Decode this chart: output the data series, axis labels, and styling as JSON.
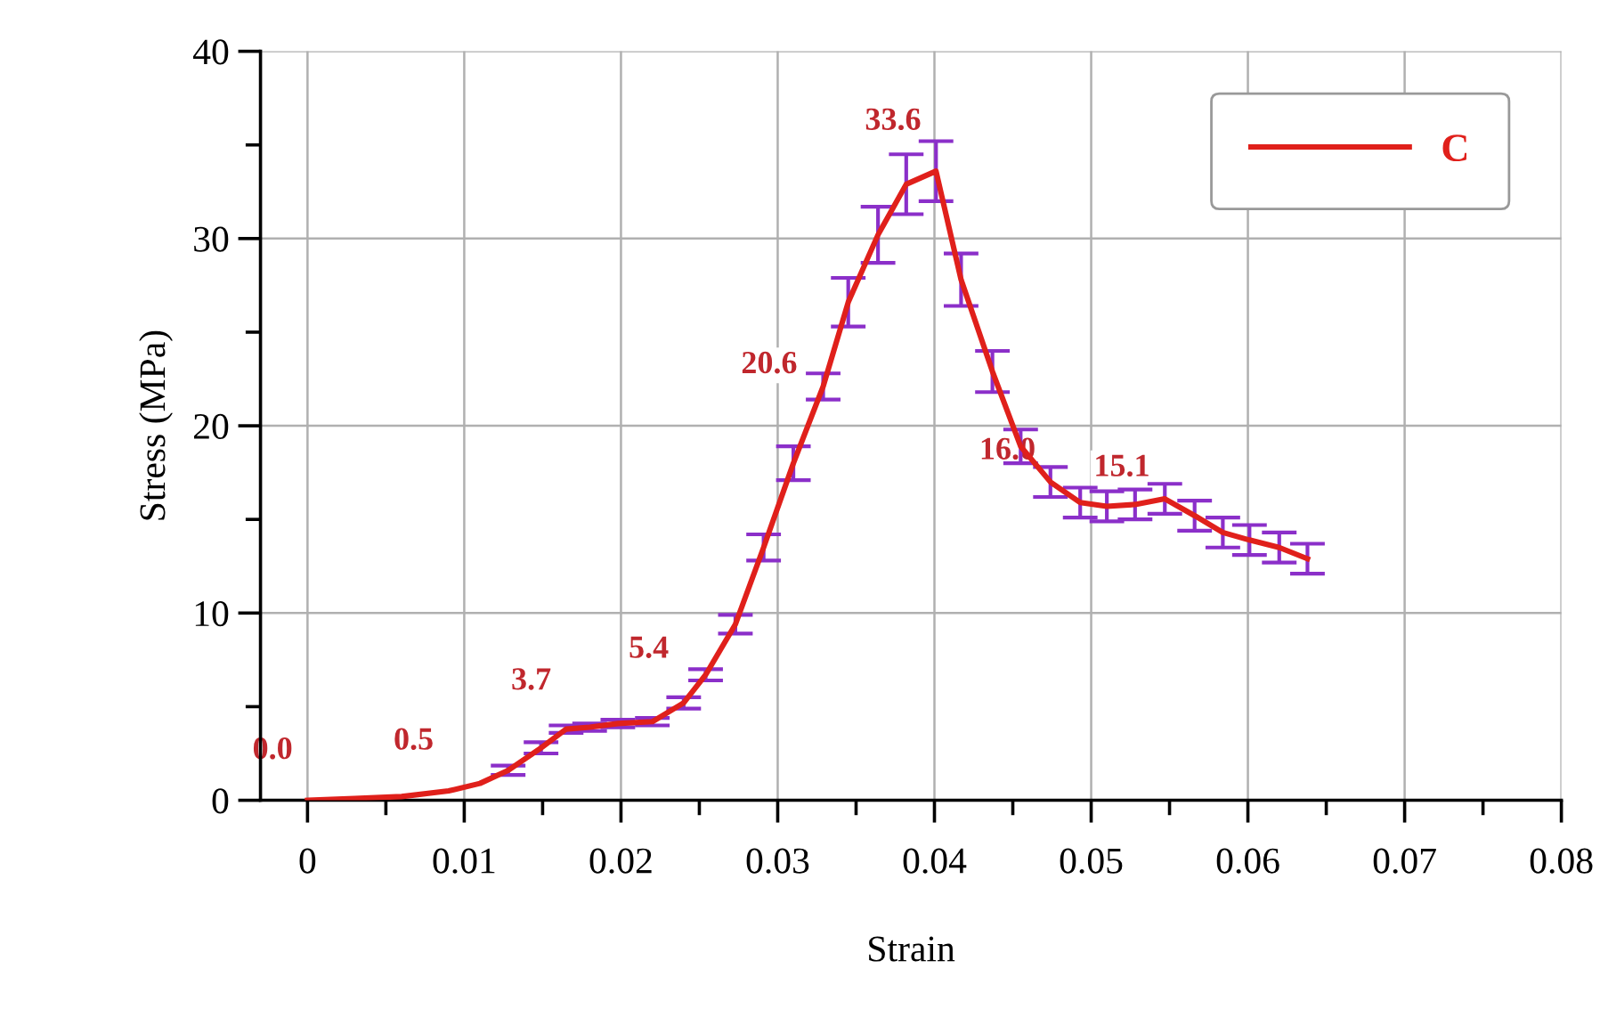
{
  "chart_data": {
    "type": "line",
    "xlabel": "Strain",
    "ylabel": "Stress (MPa)",
    "x": [
      0,
      0.003,
      0.006,
      0.009,
      0.011,
      0.0128,
      0.0149,
      0.0165,
      0.018,
      0.0198,
      0.022,
      0.024,
      0.0254,
      0.0273,
      0.0291,
      0.031,
      0.0329,
      0.0345,
      0.0364,
      0.0382,
      0.0401,
      0.0417,
      0.0437,
      0.0455,
      0.0474,
      0.0493,
      0.051,
      0.0528,
      0.0547,
      0.0566,
      0.0584,
      0.0601,
      0.062,
      0.0638
    ],
    "series": [
      {
        "name": "C",
        "color": "#e0201b",
        "values": [
          0,
          0.1,
          0.2,
          0.5,
          0.9,
          1.6,
          2.8,
          3.8,
          3.9,
          4.1,
          4.2,
          5.2,
          6.7,
          9.4,
          13.5,
          18.0,
          22.1,
          26.6,
          30.2,
          32.9,
          33.6,
          27.8,
          22.9,
          18.9,
          17.0,
          15.9,
          15.7,
          15.8,
          16.1,
          15.2,
          14.3,
          13.9,
          13.5,
          12.9
        ],
        "errors": [
          null,
          null,
          null,
          null,
          null,
          0.25,
          0.3,
          0.2,
          0.2,
          0.2,
          0.2,
          0.3,
          0.3,
          0.5,
          0.7,
          0.9,
          0.7,
          1.3,
          1.5,
          1.6,
          1.6,
          1.4,
          1.1,
          0.9,
          0.8,
          0.8,
          0.8,
          0.8,
          0.8,
          0.8,
          0.8,
          0.8,
          0.8,
          0.8
        ]
      }
    ],
    "annotations": [
      {
        "text": "0.0",
        "x": 0,
        "y": 0
      },
      {
        "text": "0.5",
        "x": 0.009,
        "y": 0.5
      },
      {
        "text": "3.7",
        "x": 0.0165,
        "y": 3.7
      },
      {
        "text": "5.4",
        "x": 0.024,
        "y": 5.4
      },
      {
        "text": "20.6",
        "x": 0.0322,
        "y": 20.6
      },
      {
        "text": "33.6",
        "x": 0.0401,
        "y": 33.6
      },
      {
        "text": "16.0",
        "x": 0.0474,
        "y": 16.0
      },
      {
        "text": "15.1",
        "x": 0.0547,
        "y": 15.1
      }
    ],
    "xlim": [
      -0.003,
      0.08
    ],
    "ylim": [
      0,
      40
    ],
    "xticks": [
      0,
      {
        "value": 0.005,
        "label": null
      },
      0.01,
      {
        "value": 0.015,
        "label": null
      },
      0.02,
      {
        "value": 0.025,
        "label": null
      },
      0.03,
      {
        "value": 0.035,
        "label": null
      },
      0.04,
      {
        "value": 0.045,
        "label": null
      },
      0.05,
      {
        "value": 0.055,
        "label": null
      },
      0.06,
      {
        "value": 0.065,
        "label": null
      },
      0.07,
      {
        "value": 0.075,
        "label": null
      },
      0.08
    ],
    "yticks": [
      0,
      {
        "value": 5,
        "label": null
      },
      10,
      {
        "value": 15,
        "label": null
      },
      20,
      {
        "value": 25,
        "label": null
      },
      30,
      {
        "value": 35,
        "label": null
      },
      40
    ],
    "grid": true,
    "legend": "top right",
    "marker": "none",
    "line_style": "solid"
  }
}
